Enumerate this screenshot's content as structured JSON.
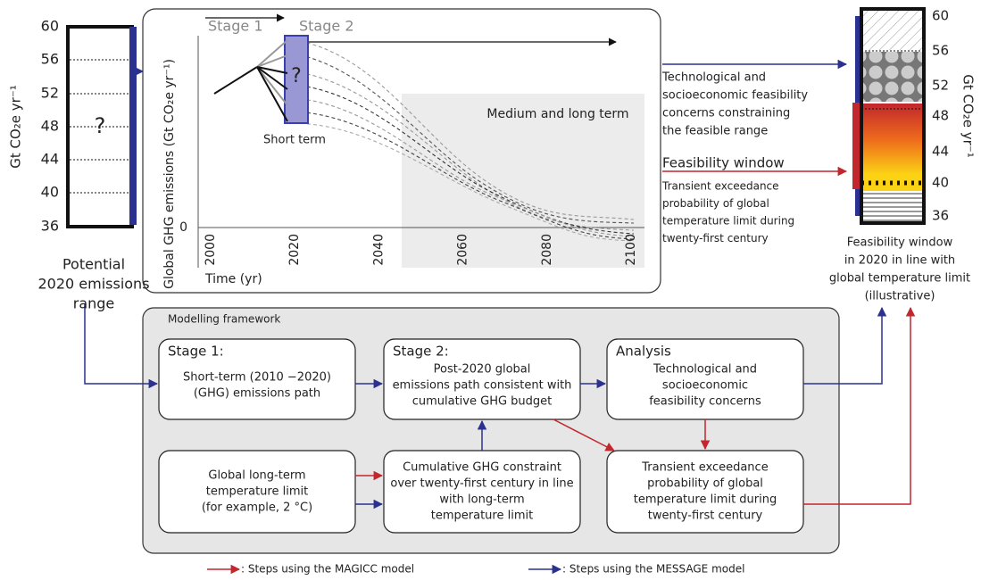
{
  "left_scale": {
    "ticks": [
      60,
      56,
      52,
      48,
      44,
      40,
      36
    ],
    "axis_label": "Gt CO₂e yr⁻¹",
    "unknown": "?",
    "caption": [
      "Potential",
      "2020 emissions",
      "range"
    ]
  },
  "center_plot": {
    "stage1": "Stage 1",
    "stage2": "Stage 2",
    "unknown": "?",
    "short_term": "Short term",
    "medium_long": "Medium and long term",
    "y_label": "Global GHG emissions (Gt CO₂e yr⁻¹)",
    "y_tick": 0,
    "x_ticks": [
      2000,
      2020,
      2040,
      2060,
      2080,
      2100
    ],
    "x_label": "Time (yr)"
  },
  "annotations": {
    "feasibility_concerns": [
      "Technological and",
      "socioeconomic feasibility",
      "concerns constraining",
      "the feasible range"
    ],
    "window_title": "Feasibility window",
    "exceedance": [
      "Transient exceedance",
      "probability of global",
      "temperature limit during",
      "twenty-first century"
    ]
  },
  "right_scale": {
    "ticks": [
      60,
      56,
      52,
      48,
      44,
      40,
      36
    ],
    "axis_label": "Gt CO₂e yr⁻¹",
    "caption": [
      "Feasibility window",
      "in 2020 in line with",
      "global temperature limit",
      "(illustrative)"
    ]
  },
  "framework": {
    "title": "Modelling framework",
    "boxes": [
      {
        "heading": "Stage 1:",
        "lines": [
          "Short-term (2010 −2020)",
          "(GHG) emissions path"
        ]
      },
      {
        "heading": "Stage 2:",
        "lines": [
          "Post-2020 global",
          "emissions path consistent with",
          "cumulative GHG budget"
        ]
      },
      {
        "heading": "Analysis",
        "lines": [
          "Technological and",
          "socioeconomic",
          "feasibility concerns"
        ]
      },
      {
        "lines": [
          "Global long-term",
          "temperature limit",
          "(for example, 2 °C)"
        ]
      },
      {
        "lines": [
          "Cumulative GHG constraint",
          "over twenty-first century in line",
          "with long-term",
          "temperature limit"
        ]
      },
      {
        "lines": [
          "Transient exceedance",
          "probability of global",
          "temperature limit during",
          "twenty-first century"
        ]
      }
    ]
  },
  "legend": {
    "magicc": ": Steps using the MAGICC model",
    "message": ": Steps using the MESSAGE model"
  }
}
